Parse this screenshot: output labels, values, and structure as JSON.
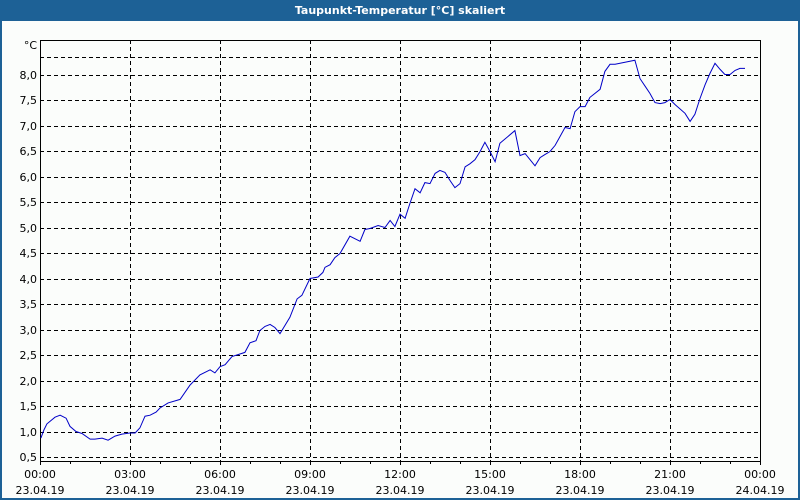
{
  "window": {
    "title": "Taupunkt-Temperatur [°C] skaliert"
  },
  "colors": {
    "titlebar": "#1d6196",
    "background": "#fbfdfb",
    "line": "#0000c8",
    "grid": "#000000"
  },
  "chart_data": {
    "type": "line",
    "title": "Taupunkt-Temperatur [°C] skaliert",
    "xlabel": "",
    "ylabel": "°C",
    "unit": "°C",
    "ylim": [
      0.45,
      8.6
    ],
    "xlim_hours": [
      0,
      24
    ],
    "grid": true,
    "y_ticks": [
      "0,5",
      "1,0",
      "1,5",
      "2,0",
      "2,5",
      "3,0",
      "3,5",
      "4,0",
      "4,5",
      "5,0",
      "5,5",
      "6,0",
      "6,5",
      "7,0",
      "7,5",
      "8,0"
    ],
    "y_tick_values": [
      0.5,
      1.0,
      1.5,
      2.0,
      2.5,
      3.0,
      3.5,
      4.0,
      4.5,
      5.0,
      5.5,
      6.0,
      6.5,
      7.0,
      7.5,
      8.0
    ],
    "x_ticks": [
      {
        "time": "00:00",
        "date": "23.04.19"
      },
      {
        "time": "03:00",
        "date": "23.04.19"
      },
      {
        "time": "06:00",
        "date": "23.04.19"
      },
      {
        "time": "09:00",
        "date": "23.04.19"
      },
      {
        "time": "12:00",
        "date": "23.04.19"
      },
      {
        "time": "15:00",
        "date": "23.04.19"
      },
      {
        "time": "18:00",
        "date": "23.04.19"
      },
      {
        "time": "21:00",
        "date": "23.04.19"
      },
      {
        "time": "00:00",
        "date": "24.04.19"
      }
    ],
    "series": [
      {
        "name": "Taupunkt-Temperatur",
        "x_hours": [
          0.03,
          0.13,
          0.23,
          0.5,
          0.67,
          0.87,
          1.0,
          1.2,
          1.4,
          1.67,
          1.83,
          2.07,
          2.27,
          2.5,
          2.73,
          3.0,
          3.17,
          3.33,
          3.5,
          3.67,
          3.87,
          4.0,
          4.27,
          4.67,
          5.0,
          5.33,
          5.67,
          5.83,
          6.0,
          6.17,
          6.4,
          6.83,
          7.0,
          7.2,
          7.33,
          7.5,
          7.67,
          7.83,
          8.0,
          8.33,
          8.57,
          8.73,
          9.0,
          9.27,
          9.43,
          9.5,
          9.67,
          9.83,
          10.0,
          10.33,
          10.67,
          10.83,
          11.0,
          11.27,
          11.5,
          11.67,
          11.83,
          12.0,
          12.17,
          12.33,
          12.5,
          12.67,
          12.83,
          13.0,
          13.17,
          13.33,
          13.5,
          13.67,
          13.83,
          14.0,
          14.17,
          14.33,
          14.5,
          14.67,
          14.83,
          15.0,
          15.17,
          15.33,
          15.83,
          16.0,
          16.17,
          16.5,
          16.67,
          16.83,
          17.0,
          17.17,
          17.33,
          17.5,
          17.67,
          17.83,
          18.0,
          18.17,
          18.33,
          18.67,
          18.83,
          19.0,
          19.17,
          19.5,
          19.83,
          20.0,
          20.17,
          20.33,
          20.5,
          20.67,
          20.83,
          21.0,
          21.17,
          21.5,
          21.67,
          21.83,
          22.0,
          22.17,
          22.33,
          22.5,
          22.67,
          22.83,
          23.0,
          23.17,
          23.33,
          23.5,
          23.83
        ],
        "values": [
          0.87,
          1.03,
          1.15,
          1.28,
          1.32,
          1.26,
          1.1,
          1.0,
          0.96,
          0.85,
          0.85,
          0.87,
          0.83,
          0.91,
          0.95,
          0.97,
          0.97,
          1.07,
          1.3,
          1.32,
          1.38,
          1.46,
          1.56,
          1.63,
          1.91,
          2.11,
          2.21,
          2.15,
          2.27,
          2.31,
          2.47,
          2.55,
          2.74,
          2.78,
          2.98,
          3.06,
          3.1,
          3.04,
          2.92,
          3.24,
          3.6,
          3.67,
          4.0,
          4.03,
          4.12,
          4.22,
          4.27,
          4.41,
          4.49,
          4.83,
          4.73,
          4.96,
          4.98,
          5.04,
          5.0,
          5.14,
          5.02,
          5.26,
          5.18,
          5.47,
          5.76,
          5.68,
          5.88,
          5.86,
          6.06,
          6.12,
          6.08,
          5.92,
          5.78,
          5.86,
          6.19,
          6.25,
          6.33,
          6.49,
          6.67,
          6.49,
          6.29,
          6.65,
          6.9,
          6.41,
          6.45,
          6.21,
          6.37,
          6.43,
          6.49,
          6.61,
          6.78,
          6.96,
          6.94,
          7.27,
          7.37,
          7.37,
          7.55,
          7.71,
          8.06,
          8.2,
          8.2,
          8.24,
          8.28,
          7.92,
          7.77,
          7.63,
          7.45,
          7.43,
          7.45,
          7.51,
          7.41,
          7.24,
          7.08,
          7.22,
          7.53,
          7.8,
          8.02,
          8.22,
          8.1,
          8.0,
          8.0,
          8.08,
          8.12,
          8.12
        ]
      }
    ]
  }
}
